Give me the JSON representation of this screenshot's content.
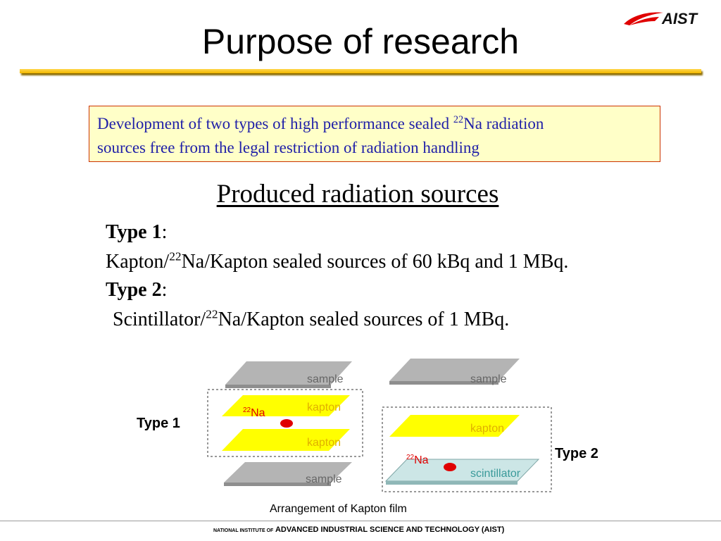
{
  "logo": {
    "text": "AIST"
  },
  "title": "Purpose of research",
  "purpose": {
    "line1_before": "Development of two types of high performance sealed ",
    "line1_sup": "22",
    "line1_after": "Na radiation",
    "line2": "sources free from the legal restriction of radiation handling"
  },
  "subtitle": "Produced radiation sources",
  "type1": {
    "heading": "Type 1",
    "heading_suffix": ":",
    "desc_before": "Kapton/",
    "desc_sup": "22",
    "desc_after": "Na/Kapton sealed sources of 60 kBq and 1 MBq."
  },
  "type2": {
    "heading": "Type 2",
    "heading_suffix": ":",
    "desc_before": "Scintillator/",
    "desc_sup": "22",
    "desc_after": "Na/Kapton sealed sources of 1 MBq."
  },
  "diagram": {
    "type1_label": "Type 1",
    "type2_label": "Type 2",
    "sample_label": "sample",
    "kapton_label": "kapton",
    "scintillator_label": "scintillator",
    "na_sup": "22",
    "na_label": "Na",
    "caption": "Arrangement of Kapton film",
    "colors": {
      "sample": "#b4b4b4",
      "kapton": "#ffff00",
      "scintillator": "#cce6e6",
      "source": "#e00000",
      "kapton_text": "#e0b000",
      "scintillator_text": "#3a9a9a"
    }
  },
  "footer": {
    "prefix": "NATIONAL INSTITUTE OF",
    "name": "ADVANCED INDUSTRIAL SCIENCE AND TECHNOLOGY (AIST)"
  }
}
